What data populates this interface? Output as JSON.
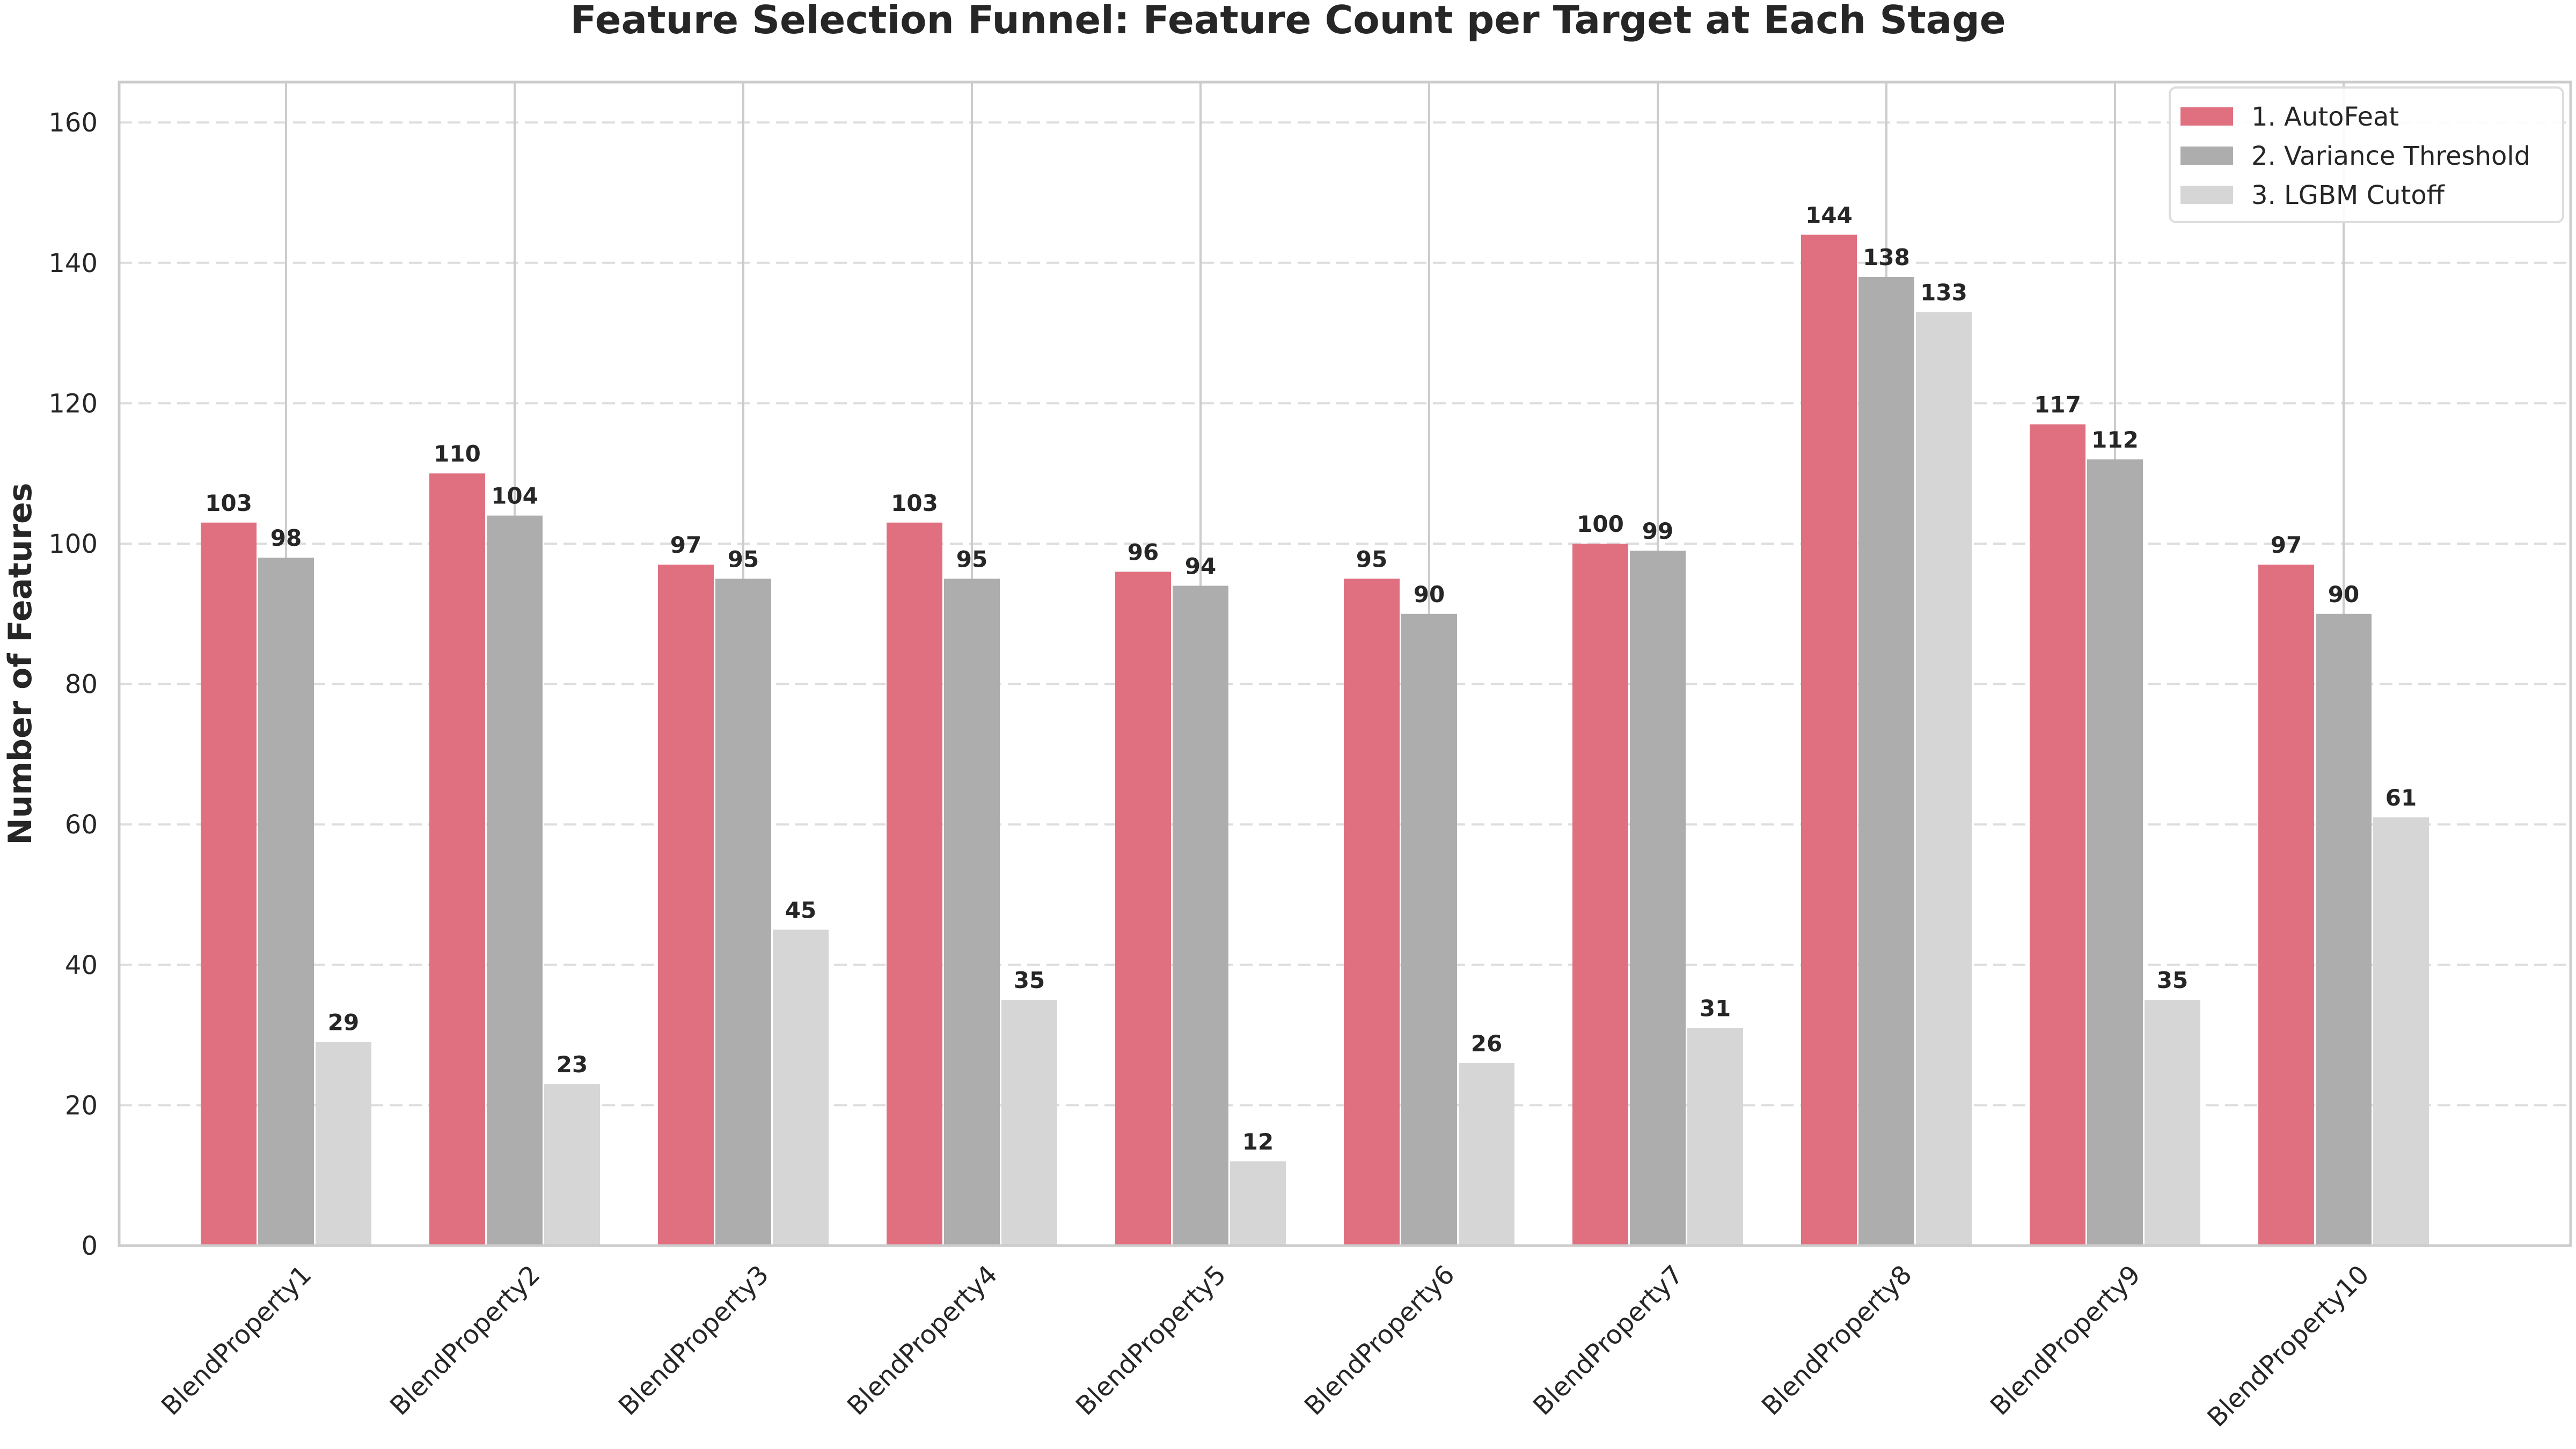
{
  "chart_data": {
    "type": "bar",
    "title": "Feature Selection Funnel: Feature Count per Target at Each Stage",
    "xlabel": "",
    "ylabel": "Number of Features",
    "ylim": [
      0,
      165
    ],
    "yticks": [
      0,
      20,
      40,
      60,
      80,
      100,
      120,
      140,
      160
    ],
    "grid": "y-dashed",
    "legend_position": "top-right",
    "categories": [
      "BlendProperty1",
      "BlendProperty2",
      "BlendProperty3",
      "BlendProperty4",
      "BlendProperty5",
      "BlendProperty6",
      "BlendProperty7",
      "BlendProperty8",
      "BlendProperty9",
      "BlendProperty10"
    ],
    "series": [
      {
        "name": "1. AutoFeat",
        "color": "#e07080",
        "values": [
          103,
          110,
          97,
          103,
          96,
          95,
          100,
          144,
          117,
          97
        ]
      },
      {
        "name": "2. Variance Threshold",
        "color": "#adadad",
        "values": [
          98,
          104,
          95,
          95,
          94,
          90,
          99,
          138,
          112,
          90
        ]
      },
      {
        "name": "3. LGBM Cutoff",
        "color": "#d6d6d6",
        "values": [
          29,
          23,
          45,
          35,
          12,
          26,
          31,
          133,
          35,
          61
        ]
      }
    ]
  }
}
